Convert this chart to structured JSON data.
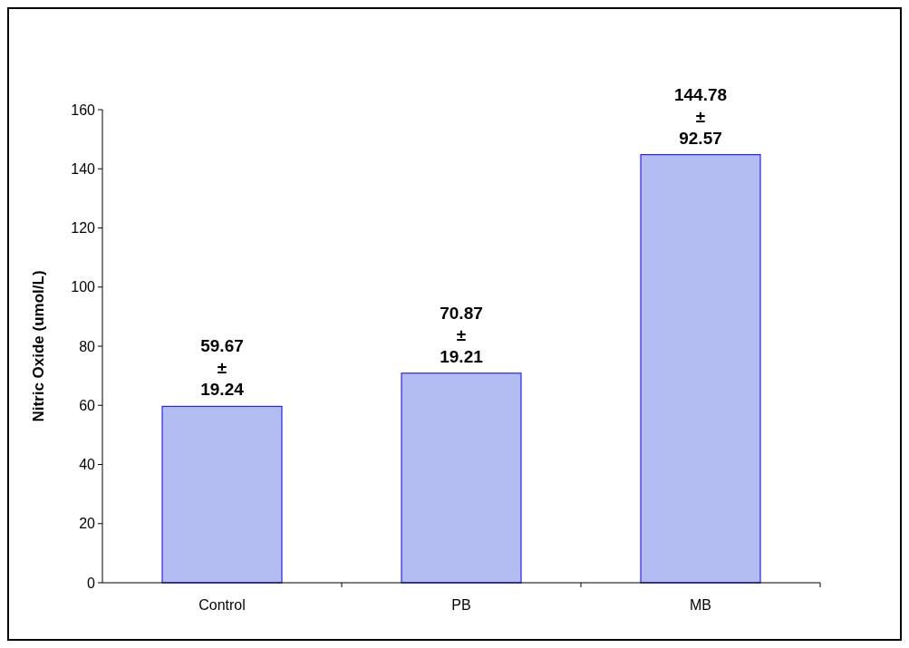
{
  "chart_data": {
    "type": "bar",
    "ylabel": "Nitric Oxide (umol/L)",
    "categories": [
      "Control",
      "PB",
      "MB"
    ],
    "values": [
      59.67,
      70.87,
      144.78
    ],
    "value_labels": [
      "59.67 ± 19.24",
      "70.87 ± 19.21",
      "144.78 ± 92.57"
    ],
    "color": "#b3bdf2",
    "ylim": [
      0,
      160
    ],
    "yticks": [
      0,
      20,
      40,
      60,
      80,
      100,
      120,
      140,
      160
    ],
    "grid": false
  }
}
